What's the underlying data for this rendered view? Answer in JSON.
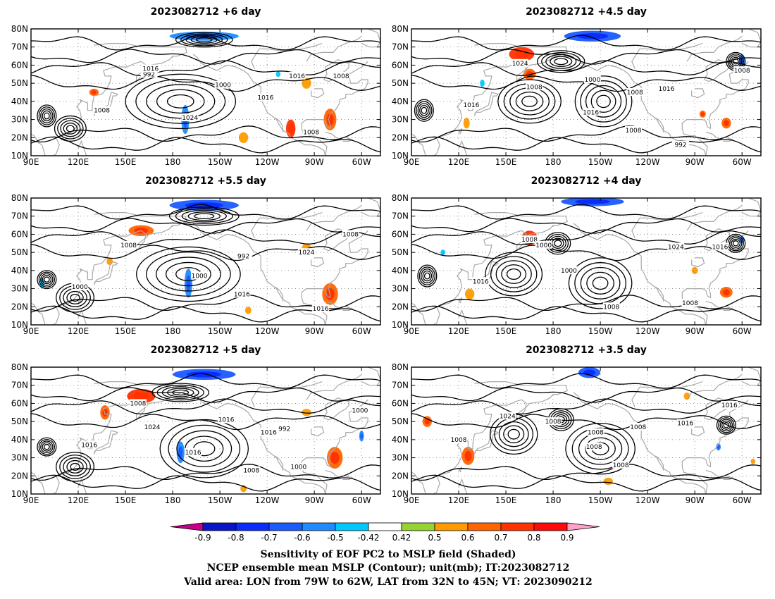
{
  "panels": [
    {
      "id": "p1",
      "title": "2023082712  +6 day",
      "isobar_labels": [
        "992",
        "1000",
        "1016",
        "1024",
        "1008",
        "1008",
        "1008",
        "1016",
        "1016"
      ],
      "features": {
        "shaded": [
          {
            "lon": 200,
            "lat": 76,
            "rx": 22,
            "ry": 2.5,
            "level": -0.6
          },
          {
            "lon": 188,
            "lat": 30,
            "rx": 2.5,
            "ry": 8,
            "level": -0.6
          },
          {
            "lon": 247,
            "lat": 55,
            "rx": 1.5,
            "ry": 1.5,
            "level": -0.5
          },
          {
            "lon": 130,
            "lat": 45,
            "rx": 3,
            "ry": 2,
            "level": 0.6
          },
          {
            "lon": 255,
            "lat": 25,
            "rx": 3,
            "ry": 5,
            "level": 0.7
          },
          {
            "lon": 280,
            "lat": 30,
            "rx": 4,
            "ry": 6,
            "level": 0.6
          },
          {
            "lon": 265,
            "lat": 50,
            "rx": 3,
            "ry": 3,
            "level": 0.5
          },
          {
            "lon": 225,
            "lat": 20,
            "rx": 3,
            "ry": 3,
            "level": 0.5
          }
        ],
        "highs": [
          {
            "lon": 185,
            "lat": 40,
            "rx": 35,
            "ry": 15,
            "p": 1024
          },
          {
            "lon": 115,
            "lat": 25,
            "rx": 10,
            "ry": 7,
            "p": 1016
          }
        ],
        "lows": [
          {
            "lon": 200,
            "lat": 74,
            "rx": 18,
            "ry": 4,
            "p": 992
          },
          {
            "lon": 100,
            "lat": 32,
            "rx": 6,
            "ry": 6,
            "p": 1008
          }
        ]
      }
    },
    {
      "id": "p2",
      "title": "2023082712  +4.5 day",
      "isobar_labels": [
        "1000",
        "1008",
        "1016",
        "992",
        "1016",
        "1008",
        "1016",
        "1024",
        "1008",
        "1008"
      ],
      "features": {
        "shaded": [
          {
            "lon": 205,
            "lat": 76,
            "rx": 18,
            "ry": 3,
            "level": -0.7
          },
          {
            "lon": 300,
            "lat": 62,
            "rx": 2,
            "ry": 4,
            "level": -0.6
          },
          {
            "lon": 135,
            "lat": 50,
            "rx": 1.5,
            "ry": 2,
            "level": -0.5
          },
          {
            "lon": 160,
            "lat": 66,
            "rx": 8,
            "ry": 4,
            "level": 0.7
          },
          {
            "lon": 165,
            "lat": 55,
            "rx": 4,
            "ry": 3,
            "level": 0.6
          },
          {
            "lon": 290,
            "lat": 28,
            "rx": 3,
            "ry": 3,
            "level": 0.6
          },
          {
            "lon": 275,
            "lat": 33,
            "rx": 2,
            "ry": 2,
            "level": 0.6
          },
          {
            "lon": 125,
            "lat": 28,
            "rx": 2,
            "ry": 3,
            "level": 0.5
          }
        ],
        "highs": [
          {
            "lon": 165,
            "lat": 40,
            "rx": 20,
            "ry": 12,
            "p": 1024
          },
          {
            "lon": 212,
            "lat": 40,
            "rx": 18,
            "ry": 14,
            "p": 1024
          }
        ],
        "lows": [
          {
            "lon": 185,
            "lat": 62,
            "rx": 15,
            "ry": 6,
            "p": 992
          },
          {
            "lon": 296,
            "lat": 62,
            "rx": 6,
            "ry": 5,
            "p": 1000
          },
          {
            "lon": 98,
            "lat": 35,
            "rx": 6,
            "ry": 6,
            "p": 1008
          }
        ]
      }
    },
    {
      "id": "p3",
      "title": "2023082712  +5.5 day",
      "isobar_labels": [
        "992",
        "1000",
        "1016",
        "1000",
        "1008",
        "1024",
        "1008",
        "1016"
      ],
      "features": {
        "shaded": [
          {
            "lon": 200,
            "lat": 76,
            "rx": 22,
            "ry": 3,
            "level": -0.7
          },
          {
            "lon": 190,
            "lat": 33,
            "rx": 2.5,
            "ry": 8,
            "level": -0.6
          },
          {
            "lon": 97,
            "lat": 33,
            "rx": 1.5,
            "ry": 3,
            "level": -0.5
          },
          {
            "lon": 160,
            "lat": 62,
            "rx": 8,
            "ry": 3,
            "level": 0.6
          },
          {
            "lon": 280,
            "lat": 27,
            "rx": 5,
            "ry": 6,
            "level": 0.6
          },
          {
            "lon": 265,
            "lat": 52,
            "rx": 3,
            "ry": 3,
            "level": 0.5
          },
          {
            "lon": 140,
            "lat": 45,
            "rx": 2,
            "ry": 2,
            "level": 0.5
          },
          {
            "lon": 228,
            "lat": 18,
            "rx": 2,
            "ry": 2,
            "level": 0.5
          }
        ],
        "highs": [
          {
            "lon": 190,
            "lat": 38,
            "rx": 33,
            "ry": 15,
            "p": 1024
          },
          {
            "lon": 118,
            "lat": 25,
            "rx": 12,
            "ry": 8,
            "p": 1016
          }
        ],
        "lows": [
          {
            "lon": 200,
            "lat": 70,
            "rx": 22,
            "ry": 5,
            "p": 992
          },
          {
            "lon": 100,
            "lat": 35,
            "rx": 6,
            "ry": 5,
            "p": 1008
          }
        ]
      }
    },
    {
      "id": "p4",
      "title": "2023082712  +4 day",
      "isobar_labels": [
        "1000",
        "1008",
        "1016",
        "1016",
        "1024",
        "1008",
        "1008",
        "1000"
      ],
      "features": {
        "shaded": [
          {
            "lon": 205,
            "lat": 78,
            "rx": 20,
            "ry": 2.5,
            "level": -0.7
          },
          {
            "lon": 300,
            "lat": 57,
            "rx": 1.5,
            "ry": 2,
            "level": -0.6
          },
          {
            "lon": 110,
            "lat": 50,
            "rx": 1.5,
            "ry": 1.5,
            "level": -0.5
          },
          {
            "lon": 165,
            "lat": 58,
            "rx": 5,
            "ry": 4,
            "level": 0.7
          },
          {
            "lon": 290,
            "lat": 28,
            "rx": 4,
            "ry": 3,
            "level": 0.6
          },
          {
            "lon": 127,
            "lat": 27,
            "rx": 3,
            "ry": 3,
            "level": 0.5
          },
          {
            "lon": 270,
            "lat": 40,
            "rx": 2,
            "ry": 2,
            "level": 0.5
          }
        ],
        "highs": [
          {
            "lon": 155,
            "lat": 38,
            "rx": 18,
            "ry": 12,
            "p": 1024
          },
          {
            "lon": 210,
            "lat": 33,
            "rx": 20,
            "ry": 14,
            "p": 1024
          }
        ],
        "lows": [
          {
            "lon": 183,
            "lat": 55,
            "rx": 8,
            "ry": 6,
            "p": 992
          },
          {
            "lon": 296,
            "lat": 55,
            "rx": 6,
            "ry": 5,
            "p": 1000
          },
          {
            "lon": 100,
            "lat": 37,
            "rx": 6,
            "ry": 6,
            "p": 1008
          }
        ]
      }
    },
    {
      "id": "p5",
      "title": "2023082712  +5 day",
      "isobar_labels": [
        "1000",
        "1016",
        "1000",
        "992",
        "1008",
        "1008",
        "1024",
        "1016",
        "1016",
        "1016"
      ],
      "features": {
        "shaded": [
          {
            "lon": 200,
            "lat": 76,
            "rx": 20,
            "ry": 3,
            "level": -0.7
          },
          {
            "lon": 185,
            "lat": 33,
            "rx": 2.5,
            "ry": 6,
            "level": -0.6
          },
          {
            "lon": 300,
            "lat": 42,
            "rx": 1.5,
            "ry": 3,
            "level": -0.6
          },
          {
            "lon": 160,
            "lat": 64,
            "rx": 9,
            "ry": 4,
            "level": 0.7
          },
          {
            "lon": 137,
            "lat": 55,
            "rx": 3,
            "ry": 4,
            "level": 0.6
          },
          {
            "lon": 283,
            "lat": 30,
            "rx": 5,
            "ry": 6,
            "level": 0.6
          },
          {
            "lon": 265,
            "lat": 55,
            "rx": 3,
            "ry": 2,
            "level": 0.5
          },
          {
            "lon": 225,
            "lat": 13,
            "rx": 2,
            "ry": 2,
            "level": 0.5
          }
        ],
        "highs": [
          {
            "lon": 200,
            "lat": 35,
            "rx": 28,
            "ry": 16,
            "p": 1024
          },
          {
            "lon": 118,
            "lat": 25,
            "rx": 12,
            "ry": 8,
            "p": 1016
          }
        ],
        "lows": [
          {
            "lon": 185,
            "lat": 66,
            "rx": 18,
            "ry": 5,
            "p": 992
          },
          {
            "lon": 100,
            "lat": 36,
            "rx": 6,
            "ry": 5,
            "p": 1008
          }
        ]
      }
    },
    {
      "id": "p6",
      "title": "2023082712  +3.5 day",
      "isobar_labels": [
        "1008",
        "1016",
        "1016",
        "1024",
        "1008",
        "1008",
        "1008",
        "1008",
        "1008"
      ],
      "features": {
        "shaded": [
          {
            "lon": 203,
            "lat": 77,
            "rx": 7,
            "ry": 3,
            "level": -0.7
          },
          {
            "lon": 285,
            "lat": 36,
            "rx": 1.5,
            "ry": 2,
            "level": -0.6
          },
          {
            "lon": 126,
            "lat": 31,
            "rx": 4,
            "ry": 5,
            "level": 0.6
          },
          {
            "lon": 100,
            "lat": 50,
            "rx": 3,
            "ry": 3,
            "level": 0.6
          },
          {
            "lon": 215,
            "lat": 17,
            "rx": 3,
            "ry": 2,
            "level": 0.5
          },
          {
            "lon": 307,
            "lat": 28,
            "rx": 1.5,
            "ry": 1.5,
            "level": 0.5
          },
          {
            "lon": 265,
            "lat": 64,
            "rx": 2,
            "ry": 2,
            "level": 0.5
          }
        ],
        "highs": [
          {
            "lon": 210,
            "lat": 35,
            "rx": 22,
            "ry": 14,
            "p": 1024
          },
          {
            "lon": 155,
            "lat": 43,
            "rx": 15,
            "ry": 11,
            "p": 1016
          }
        ],
        "lows": [
          {
            "lon": 185,
            "lat": 51,
            "rx": 8,
            "ry": 6,
            "p": 992
          },
          {
            "lon": 290,
            "lat": 48,
            "rx": 6,
            "ry": 5,
            "p": 1008
          }
        ]
      }
    }
  ],
  "axes": {
    "lon_range": [
      90,
      312
    ],
    "lat_range": [
      10,
      80
    ],
    "lon_ticks": [
      90,
      120,
      150,
      180,
      210,
      240,
      270,
      300
    ],
    "lon_labels": [
      "90E",
      "120E",
      "150E",
      "180",
      "150W",
      "120W",
      "90W",
      "60W"
    ],
    "lat_ticks": [
      10,
      20,
      30,
      40,
      50,
      60,
      70,
      80
    ],
    "lat_labels": [
      "10N",
      "20N",
      "30N",
      "40N",
      "50N",
      "60N",
      "70N",
      "80N"
    ],
    "grid": "dotted"
  },
  "colorbar": {
    "labels": [
      "-0.9",
      "-0.8",
      "-0.7",
      "-0.6",
      "-0.5",
      "-0.42",
      "0.42",
      "0.5",
      "0.6",
      "0.7",
      "0.8",
      "0.9"
    ],
    "colors": [
      "#c8008c",
      "#0a14c8",
      "#0a2dff",
      "#1a5aff",
      "#1e8cff",
      "#00c8ff",
      "#ffffff",
      "#96d232",
      "#ff9b00",
      "#ff6400",
      "#ff3200",
      "#ff0a0a",
      "#ffa0c8"
    ]
  },
  "caption": {
    "line1": "Sensitivity of EOF PC2 to MSLP field (Shaded)",
    "line2": "NCEP ensemble mean MSLP (Contour); unit(mb); IT:2023082712",
    "line3": "Valid area: LON from 79W to 62W, LAT from 32N to 45N; VT: 2023090212"
  }
}
